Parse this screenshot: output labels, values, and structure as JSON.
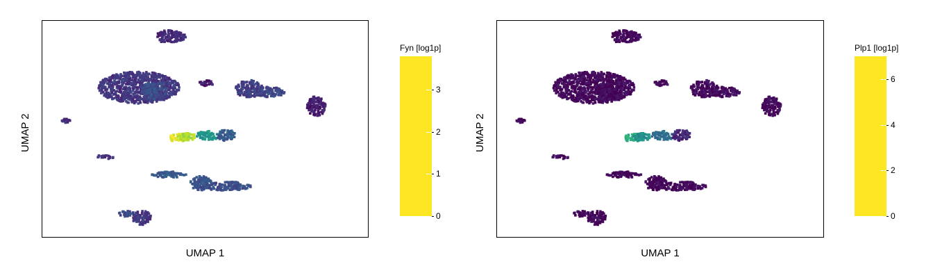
{
  "chart_data": [
    {
      "type": "scatter",
      "xlabel": "UMAP 1",
      "ylabel": "UMAP 2",
      "colorbar": {
        "title": "Fyn [log1p]",
        "range": [
          0,
          3.8
        ],
        "ticks": [
          "0",
          "1",
          "2",
          "3"
        ],
        "colormap": "viridis"
      },
      "clusters": [
        {
          "cx": -4.8,
          "cy": 6.4,
          "rx": 1.0,
          "ry": 0.45,
          "value": 0.45
        },
        {
          "cx": -6.8,
          "cy": 2.9,
          "rx": 2.6,
          "ry": 1.1,
          "value": 0.6
        },
        {
          "cx": -5.8,
          "cy": 2.7,
          "rx": 0.8,
          "ry": 0.6,
          "value": 0.9
        },
        {
          "cx": -2.5,
          "cy": 3.2,
          "rx": 0.5,
          "ry": 0.2,
          "value": 0.3
        },
        {
          "cx": 0.3,
          "cy": 2.8,
          "rx": 0.9,
          "ry": 0.6,
          "value": 0.7
        },
        {
          "cx": 1.6,
          "cy": 2.6,
          "rx": 1.0,
          "ry": 0.35,
          "value": 0.8
        },
        {
          "cx": 4.6,
          "cy": 1.6,
          "rx": 0.6,
          "ry": 0.7,
          "value": 0.3
        },
        {
          "cx": -11.5,
          "cy": 0.6,
          "rx": 0.3,
          "ry": 0.15,
          "value": 0.5
        },
        {
          "cx": -4.2,
          "cy": -0.6,
          "rx": 0.7,
          "ry": 0.3,
          "value": 3.6
        },
        {
          "cx": -3.7,
          "cy": -0.5,
          "rx": 0.6,
          "ry": 0.25,
          "value": 3.3
        },
        {
          "cx": -2.3,
          "cy": -0.4,
          "rx": 0.8,
          "ry": 0.3,
          "value": 2.0
        },
        {
          "cx": -1.2,
          "cy": -0.4,
          "rx": 0.6,
          "ry": 0.4,
          "value": 1.1
        },
        {
          "cx": -9.0,
          "cy": -1.9,
          "rx": 0.6,
          "ry": 0.15,
          "value": 0.5
        },
        {
          "cx": -4.8,
          "cy": -3.1,
          "rx": 1.2,
          "ry": 0.2,
          "value": 1.1
        },
        {
          "cx": -2.8,
          "cy": -3.7,
          "rx": 0.7,
          "ry": 0.5,
          "value": 1.0
        },
        {
          "cx": -1.2,
          "cy": -3.9,
          "rx": 1.6,
          "ry": 0.3,
          "value": 0.9
        },
        {
          "cx": -6.6,
          "cy": -6.1,
          "rx": 0.6,
          "ry": 0.5,
          "value": 0.6
        },
        {
          "cx": -7.6,
          "cy": -5.8,
          "rx": 0.5,
          "ry": 0.2,
          "value": 0.9
        }
      ]
    },
    {
      "type": "scatter",
      "xlabel": "UMAP 1",
      "ylabel": "UMAP 2",
      "colorbar": {
        "title": "Plp1 [log1p]",
        "range": [
          0,
          7
        ],
        "ticks": [
          "0",
          "2",
          "4",
          "6"
        ],
        "colormap": "viridis"
      },
      "clusters": [
        {
          "cx": -4.8,
          "cy": 6.4,
          "rx": 1.0,
          "ry": 0.45,
          "value": 0.1
        },
        {
          "cx": -6.8,
          "cy": 2.9,
          "rx": 2.6,
          "ry": 1.1,
          "value": 0.1
        },
        {
          "cx": -5.8,
          "cy": 2.7,
          "rx": 0.8,
          "ry": 0.6,
          "value": 0.1
        },
        {
          "cx": -2.5,
          "cy": 3.2,
          "rx": 0.5,
          "ry": 0.2,
          "value": 0.1
        },
        {
          "cx": 0.3,
          "cy": 2.8,
          "rx": 0.9,
          "ry": 0.6,
          "value": 0.2
        },
        {
          "cx": 1.6,
          "cy": 2.6,
          "rx": 1.0,
          "ry": 0.35,
          "value": 0.2
        },
        {
          "cx": 4.6,
          "cy": 1.6,
          "rx": 0.6,
          "ry": 0.7,
          "value": 0.1
        },
        {
          "cx": -11.5,
          "cy": 0.6,
          "rx": 0.3,
          "ry": 0.15,
          "value": 0.1
        },
        {
          "cx": -4.2,
          "cy": -0.6,
          "rx": 0.7,
          "ry": 0.3,
          "value": 4.3
        },
        {
          "cx": -3.7,
          "cy": -0.5,
          "rx": 0.6,
          "ry": 0.25,
          "value": 3.4
        },
        {
          "cx": -2.3,
          "cy": -0.4,
          "rx": 0.8,
          "ry": 0.3,
          "value": 2.5
        },
        {
          "cx": -1.2,
          "cy": -0.4,
          "rx": 0.6,
          "ry": 0.4,
          "value": 0.8
        },
        {
          "cx": -9.0,
          "cy": -1.9,
          "rx": 0.6,
          "ry": 0.15,
          "value": 0.1
        },
        {
          "cx": -4.8,
          "cy": -3.1,
          "rx": 1.2,
          "ry": 0.2,
          "value": 0.1
        },
        {
          "cx": -2.8,
          "cy": -3.7,
          "rx": 0.7,
          "ry": 0.5,
          "value": 0.1
        },
        {
          "cx": -1.2,
          "cy": -3.9,
          "rx": 1.6,
          "ry": 0.3,
          "value": 0.1
        },
        {
          "cx": -6.6,
          "cy": -6.1,
          "rx": 0.6,
          "ry": 0.5,
          "value": 0.1
        },
        {
          "cx": -7.6,
          "cy": -5.8,
          "rx": 0.5,
          "ry": 0.2,
          "value": 0.1
        }
      ]
    }
  ]
}
